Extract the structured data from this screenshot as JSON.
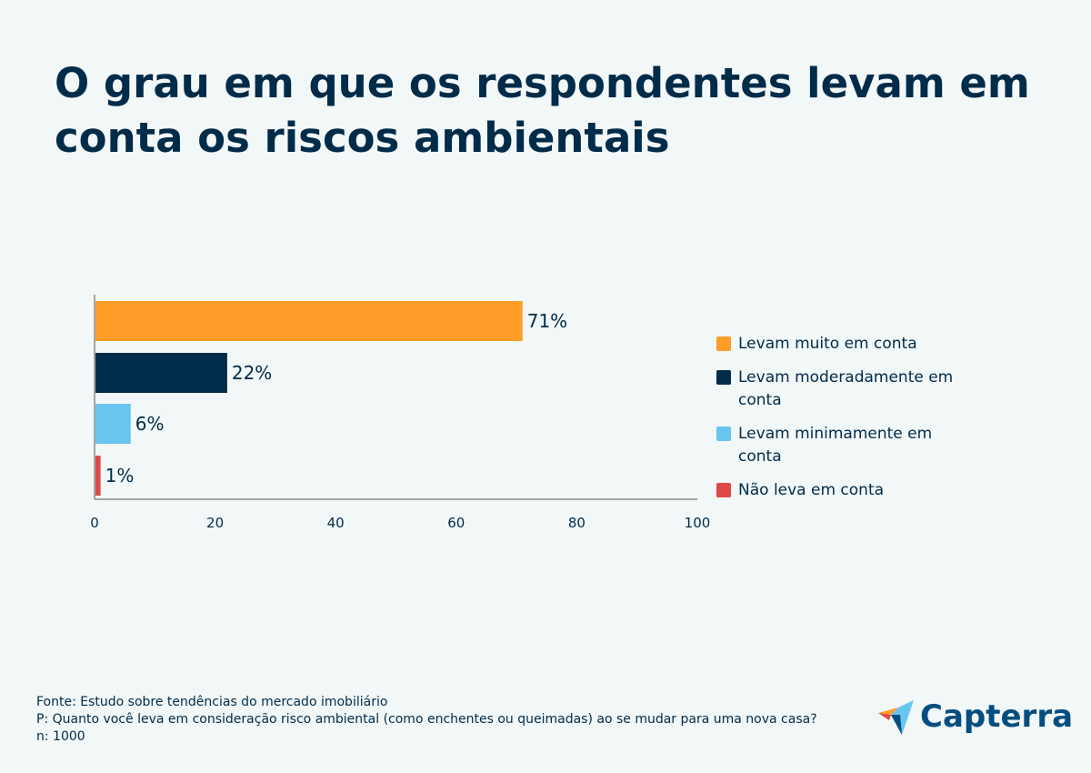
{
  "title": "O grau em que os respondentes levam em conta os riscos ambientais",
  "chart_data": {
    "type": "bar",
    "orientation": "horizontal",
    "categories": [
      "Levam muito em conta",
      "Levam moderadamente em conta",
      "Levam minimamente em conta",
      "Não leva em conta"
    ],
    "values": [
      71,
      22,
      6,
      1
    ],
    "data_labels": [
      "71%",
      "22%",
      "6%",
      "1%"
    ],
    "colors": [
      "#ff9d28",
      "#002b49",
      "#68c5ed",
      "#e04848"
    ],
    "xlim": [
      0,
      100
    ],
    "xticks": [
      "0",
      "20",
      "40",
      "60",
      "80",
      "100"
    ],
    "grid": false,
    "legend_placement": "right",
    "xlabel": "",
    "ylabel": ""
  },
  "legend": [
    "Levam muito em conta",
    "Levam moderadamente em conta",
    "Levam minimamente em conta",
    "Não leva em conta"
  ],
  "footer": {
    "source": "Fonte: Estudo sobre tendências do mercado imobiliário",
    "question": "P: Quanto você leva em consideração risco ambiental (como enchentes ou queimadas) ao se mudar para uma nova casa?",
    "n": "n: 1000"
  },
  "logo": {
    "text": "Capterra"
  }
}
